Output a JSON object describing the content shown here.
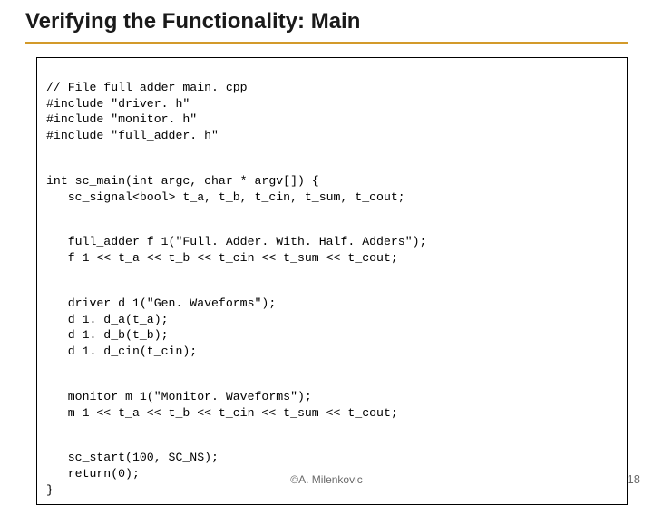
{
  "title": "Verifying the Functionality: Main",
  "title_rule_color": "#d39a2a",
  "code": {
    "p1l1": "// File full_adder_main. cpp",
    "p1l2": "#include \"driver. h\"",
    "p1l3": "#include \"monitor. h\"",
    "p1l4": "#include \"full_adder. h\"",
    "p2l1": "int sc_main(int argc, char * argv[]) {",
    "p2l2": "   sc_signal<bool> t_a, t_b, t_cin, t_sum, t_cout;",
    "p3l1": "   full_adder f 1(\"Full. Adder. With. Half. Adders\");",
    "p3l2": "   f 1 << t_a << t_b << t_cin << t_sum << t_cout;",
    "p4l1": "   driver d 1(\"Gen. Waveforms\");",
    "p4l2": "   d 1. d_a(t_a);",
    "p4l3": "   d 1. d_b(t_b);",
    "p4l4": "   d 1. d_cin(t_cin);",
    "p5l1": "   monitor m 1(\"Monitor. Waveforms\");",
    "p5l2": "   m 1 << t_a << t_b << t_cin << t_sum << t_cout;",
    "p6l1": "   sc_start(100, SC_NS);",
    "p6l2": "   return(0);",
    "p7l1": "}"
  },
  "footer": "©A. Milenkovic",
  "page_number": "18",
  "colors": {
    "background": "#ffffff",
    "text": "#000000",
    "footer_text": "#6a6a6a",
    "border": "#000000"
  },
  "fonts": {
    "title_family": "Arial",
    "title_size_pt": 18,
    "title_weight": "bold",
    "code_family": "Courier New",
    "code_size_pt": 10
  }
}
